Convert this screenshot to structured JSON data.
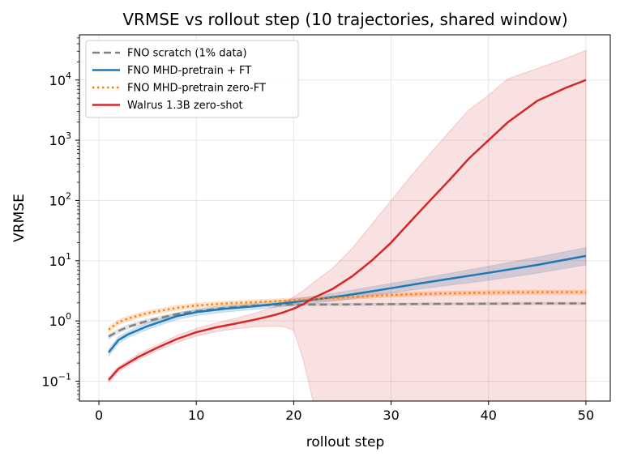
{
  "chart_data": {
    "type": "line",
    "title": "VRMSE vs rollout step (10 trajectories, shared window)",
    "xlabel": "rollout step",
    "ylabel": "VRMSE",
    "xlim": [
      -2,
      52.5
    ],
    "ylim_log10": [
      -1.33,
      4.75
    ],
    "yscale": "log",
    "grid": true,
    "legend_position": "upper-left",
    "x_ticks": [
      0,
      10,
      20,
      30,
      40,
      50
    ],
    "y_ticks": [
      {
        "exp": -1,
        "base": "10",
        "sup": "−1"
      },
      {
        "exp": 0,
        "base": "10",
        "sup": "0"
      },
      {
        "exp": 1,
        "base": "10",
        "sup": "1"
      },
      {
        "exp": 2,
        "base": "10",
        "sup": "2"
      },
      {
        "exp": 3,
        "base": "10",
        "sup": "3"
      },
      {
        "exp": 4,
        "base": "10",
        "sup": "4"
      }
    ],
    "series": [
      {
        "name": "FNO scratch (1% data)",
        "color": "#808080",
        "style": "dashed",
        "x": [
          1,
          2,
          3,
          5,
          8,
          10,
          13,
          16,
          18,
          20,
          22,
          25,
          30,
          35,
          40,
          45,
          50
        ],
        "y": [
          0.55,
          0.68,
          0.8,
          1.0,
          1.3,
          1.45,
          1.65,
          1.8,
          1.85,
          1.87,
          1.87,
          1.88,
          1.9,
          1.92,
          1.93,
          1.95,
          1.95
        ],
        "band_low": [
          0.5,
          0.62,
          0.74,
          0.93,
          1.22,
          1.38,
          1.57,
          1.72,
          1.77,
          1.79,
          1.79,
          1.8,
          1.82,
          1.84,
          1.85,
          1.87,
          1.87
        ],
        "band_high": [
          0.6,
          0.74,
          0.86,
          1.08,
          1.38,
          1.53,
          1.73,
          1.88,
          1.93,
          1.95,
          1.95,
          1.96,
          1.98,
          2.0,
          2.02,
          2.04,
          2.04
        ]
      },
      {
        "name": "FNO MHD-pretrain + FT",
        "color": "#1f77b4",
        "style": "solid",
        "x": [
          1,
          2,
          3,
          5,
          8,
          10,
          13,
          16,
          18,
          20,
          22,
          25,
          28,
          30,
          33,
          36,
          40,
          45,
          50
        ],
        "y": [
          0.3,
          0.48,
          0.6,
          0.82,
          1.2,
          1.4,
          1.6,
          1.75,
          1.9,
          2.05,
          2.25,
          2.6,
          3.1,
          3.5,
          4.2,
          5.0,
          6.3,
          8.5,
          12.0
        ],
        "band_low": [
          0.26,
          0.42,
          0.53,
          0.72,
          1.05,
          1.22,
          1.4,
          1.55,
          1.68,
          1.8,
          1.95,
          2.2,
          2.6,
          2.9,
          3.4,
          3.9,
          4.7,
          6.2,
          8.5
        ],
        "band_high": [
          0.34,
          0.55,
          0.68,
          0.93,
          1.36,
          1.58,
          1.8,
          1.97,
          2.13,
          2.32,
          2.58,
          3.05,
          3.7,
          4.2,
          5.1,
          6.2,
          8.1,
          11.5,
          16.5
        ]
      },
      {
        "name": "FNO MHD-pretrain zero-FT",
        "color": "#ff7f0e",
        "style": "dotted",
        "x": [
          1,
          2,
          3,
          5,
          8,
          10,
          13,
          16,
          20,
          25,
          30,
          35,
          40,
          45,
          50
        ],
        "y": [
          0.72,
          0.95,
          1.1,
          1.35,
          1.65,
          1.8,
          1.95,
          2.05,
          2.2,
          2.45,
          2.7,
          2.85,
          2.95,
          3.0,
          3.0
        ],
        "band_low": [
          0.65,
          0.86,
          1.0,
          1.23,
          1.5,
          1.64,
          1.78,
          1.88,
          2.02,
          2.25,
          2.48,
          2.62,
          2.72,
          2.77,
          2.77
        ],
        "band_high": [
          0.8,
          1.05,
          1.21,
          1.48,
          1.81,
          1.97,
          2.13,
          2.24,
          2.4,
          2.67,
          2.94,
          3.1,
          3.2,
          3.25,
          3.25
        ]
      },
      {
        "name": "Walrus 1.3B zero-shot",
        "color": "#d62728",
        "style": "solid",
        "x": [
          1,
          2,
          3,
          4,
          5,
          6,
          8,
          10,
          12,
          14,
          16,
          18,
          19,
          20,
          21,
          22,
          24,
          26,
          28,
          30,
          32,
          34,
          36,
          38,
          40,
          42,
          45,
          48,
          50
        ],
        "y": [
          0.105,
          0.16,
          0.2,
          0.25,
          0.3,
          0.36,
          0.5,
          0.65,
          0.78,
          0.9,
          1.05,
          1.25,
          1.4,
          1.6,
          1.9,
          2.4,
          3.4,
          5.5,
          10,
          20,
          45,
          100,
          220,
          500,
          1000,
          2000,
          4500,
          7500,
          10000
        ],
        "band_low": [
          0.095,
          0.145,
          0.18,
          0.225,
          0.27,
          0.32,
          0.44,
          0.56,
          0.66,
          0.74,
          0.8,
          0.82,
          0.8,
          0.7,
          0.22,
          0.01,
          0.01,
          0.01,
          0.01,
          0.01,
          0.01,
          0.01,
          0.01,
          0.01,
          0.01,
          0.01,
          0.01,
          0.01,
          0.01
        ],
        "band_high": [
          0.115,
          0.175,
          0.22,
          0.28,
          0.34,
          0.4,
          0.57,
          0.75,
          0.92,
          1.1,
          1.35,
          1.7,
          2.0,
          2.5,
          3.2,
          4.3,
          7.5,
          16,
          40,
          100,
          250,
          600,
          1400,
          3200,
          5600,
          10500,
          15500,
          23000,
          31000
        ]
      }
    ]
  }
}
